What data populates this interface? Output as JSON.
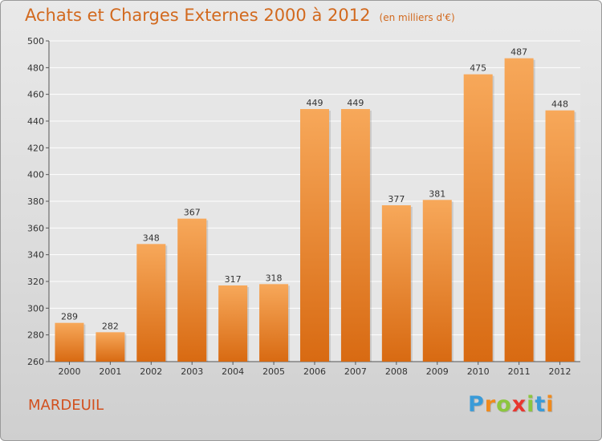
{
  "title": "Achats et Charges Externes 2000 à 2012",
  "subtitle": "(en milliers d'€)",
  "place": "MARDEUIL",
  "logo": {
    "letters": [
      "P",
      "r",
      "o",
      "x",
      "i",
      "t",
      "i"
    ],
    "colors": [
      "#3a9bd8",
      "#f08a1c",
      "#8cc63f",
      "#e8362f",
      "#8cc63f",
      "#3a9bd8",
      "#f08a1c"
    ]
  },
  "colors": {
    "bar_light": "#f7a85a",
    "bar_dark": "#d86a12",
    "title": "#d2691e"
  },
  "chart_data": {
    "type": "bar",
    "categories": [
      "2000",
      "2001",
      "2002",
      "2003",
      "2004",
      "2005",
      "2006",
      "2007",
      "2008",
      "2009",
      "2010",
      "2011",
      "2012"
    ],
    "values": [
      289,
      282,
      348,
      367,
      317,
      318,
      449,
      449,
      377,
      381,
      475,
      487,
      448
    ],
    "title": "Achats et Charges Externes 2000 à 2012",
    "xlabel": "",
    "ylabel": "",
    "ylim": [
      260,
      500
    ],
    "yticks": [
      260,
      280,
      300,
      320,
      340,
      360,
      380,
      400,
      420,
      440,
      460,
      480,
      500
    ],
    "grid": true,
    "data_labels": true
  }
}
